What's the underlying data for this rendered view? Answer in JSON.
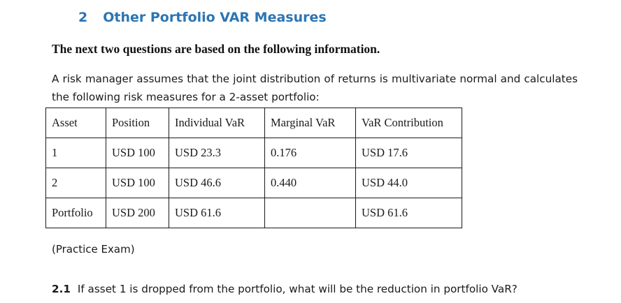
{
  "section": {
    "number": "2",
    "title": "Other Portfolio VAR Measures"
  },
  "lead_text": "The next two questions are based on the following information.",
  "paragraph": "A risk manager assumes that the joint distribution of returns is multivariate normal and calculates the following risk measures for a 2-asset portfolio:",
  "table": {
    "headers": [
      "Asset",
      "Position",
      "Individual VaR",
      "Marginal VaR",
      "VaR Contribution"
    ],
    "rows": [
      [
        "1",
        "USD 100",
        "USD 23.3",
        "0.176",
        "USD 17.6"
      ],
      [
        "2",
        "USD 100",
        "USD 46.6",
        "0.440",
        "USD 44.0"
      ],
      [
        "Portfolio",
        "USD 200",
        "USD 61.6",
        "",
        "USD 61.6"
      ]
    ]
  },
  "source_note": "(Practice Exam)",
  "question": {
    "number": "2.1",
    "text": "If asset 1 is dropped from the portfolio, what will be the reduction in portfolio VaR?"
  }
}
